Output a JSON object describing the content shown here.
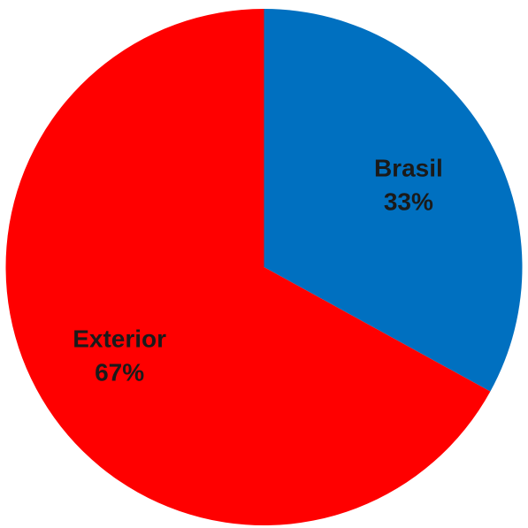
{
  "chart_data": {
    "type": "pie",
    "title": "",
    "start_angle_deg": 0,
    "direction": "clockwise",
    "slices": [
      {
        "label": "Brasil",
        "value": 33,
        "value_label": "33%",
        "color": "#0070c0"
      },
      {
        "label": "Exterior",
        "value": 67,
        "value_label": "67%",
        "color": "#ff0000"
      }
    ],
    "legend": "none"
  }
}
